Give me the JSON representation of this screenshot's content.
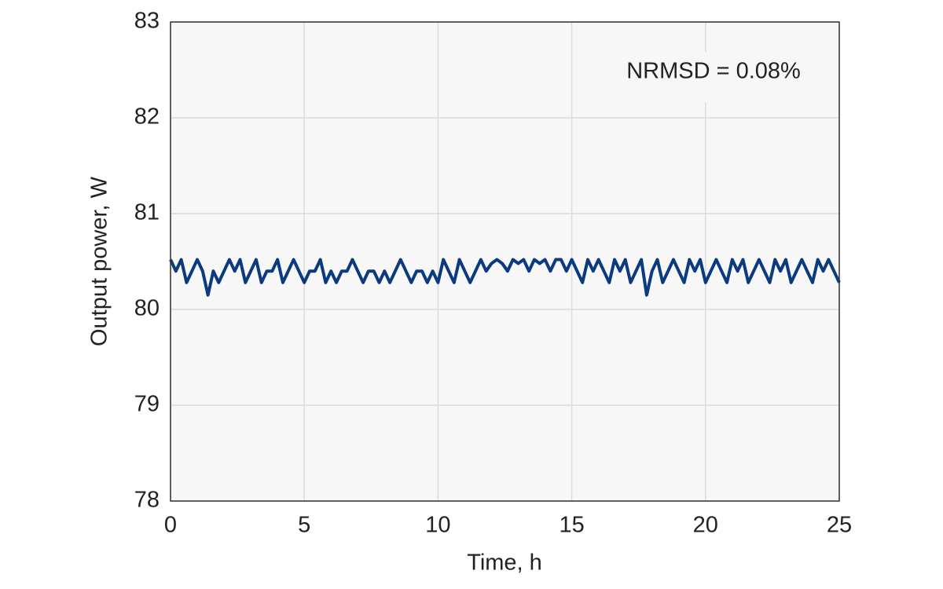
{
  "chart_data": {
    "type": "line",
    "xlabel": "Time, h",
    "ylabel": "Output power, W",
    "annotation": "NRMSD = 0.08%",
    "xlim": [
      0,
      25
    ],
    "xticks": [
      0,
      5,
      10,
      15,
      20,
      25
    ],
    "ylim": [
      78,
      83
    ],
    "yticks": [
      78,
      79,
      80,
      81,
      82,
      83
    ],
    "grid": true,
    "series": [
      {
        "color": "#0b3a7e",
        "x": [
          0,
          0.2,
          0.4,
          0.6,
          0.8,
          1,
          1.2,
          1.4,
          1.6,
          1.8,
          2,
          2.2,
          2.4,
          2.6,
          2.8,
          3,
          3.2,
          3.4,
          3.6,
          3.8,
          4,
          4.2,
          4.4,
          4.6,
          4.8,
          5,
          5.2,
          5.4,
          5.6,
          5.8,
          6,
          6.2,
          6.4,
          6.6,
          6.8,
          7,
          7.2,
          7.4,
          7.6,
          7.8,
          8,
          8.2,
          8.4,
          8.6,
          8.8,
          9,
          9.2,
          9.4,
          9.6,
          9.8,
          10,
          10.2,
          10.4,
          10.6,
          10.8,
          11,
          11.2,
          11.4,
          11.6,
          11.8,
          12,
          12.2,
          12.4,
          12.6,
          12.8,
          13,
          13.2,
          13.4,
          13.6,
          13.8,
          14,
          14.2,
          14.4,
          14.6,
          14.8,
          15,
          15.2,
          15.4,
          15.6,
          15.8,
          16,
          16.2,
          16.4,
          16.6,
          16.8,
          17,
          17.2,
          17.4,
          17.6,
          17.8,
          18,
          18.2,
          18.4,
          18.6,
          18.8,
          19,
          19.2,
          19.4,
          19.6,
          19.8,
          20,
          20.2,
          20.4,
          20.6,
          20.8,
          21,
          21.2,
          21.4,
          21.6,
          21.8,
          22,
          22.2,
          22.4,
          22.6,
          22.8,
          23,
          23.2,
          23.4,
          23.6,
          23.8,
          24,
          24.2,
          24.4,
          24.6,
          24.8,
          25
        ],
        "values": [
          80.52,
          80.4,
          80.52,
          80.28,
          80.4,
          80.52,
          80.4,
          80.15,
          80.4,
          80.28,
          80.4,
          80.52,
          80.4,
          80.52,
          80.28,
          80.4,
          80.52,
          80.28,
          80.4,
          80.4,
          80.52,
          80.28,
          80.4,
          80.52,
          80.4,
          80.28,
          80.4,
          80.4,
          80.52,
          80.28,
          80.4,
          80.28,
          80.4,
          80.4,
          80.52,
          80.4,
          80.28,
          80.4,
          80.4,
          80.28,
          80.4,
          80.28,
          80.4,
          80.52,
          80.4,
          80.28,
          80.4,
          80.4,
          80.28,
          80.4,
          80.28,
          80.52,
          80.4,
          80.28,
          80.52,
          80.4,
          80.28,
          80.4,
          80.52,
          80.4,
          80.48,
          80.52,
          80.48,
          80.4,
          80.52,
          80.48,
          80.52,
          80.4,
          80.52,
          80.48,
          80.52,
          80.4,
          80.52,
          80.52,
          80.4,
          80.52,
          80.4,
          80.28,
          80.52,
          80.4,
          80.52,
          80.4,
          80.28,
          80.52,
          80.4,
          80.52,
          80.28,
          80.4,
          80.52,
          80.15,
          80.4,
          80.52,
          80.28,
          80.4,
          80.52,
          80.4,
          80.28,
          80.52,
          80.4,
          80.52,
          80.28,
          80.4,
          80.52,
          80.4,
          80.28,
          80.52,
          80.4,
          80.52,
          80.28,
          80.4,
          80.52,
          80.4,
          80.28,
          80.52,
          80.4,
          80.52,
          80.28,
          80.4,
          80.52,
          80.4,
          80.28,
          80.52,
          80.4,
          80.52,
          80.4,
          80.28
        ]
      }
    ]
  }
}
